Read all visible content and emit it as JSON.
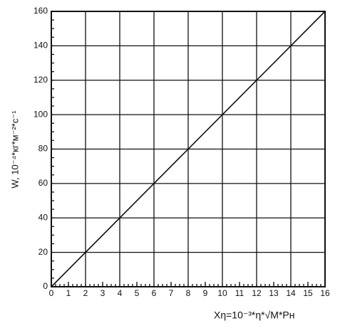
{
  "chart_data": {
    "type": "line",
    "x_label": "Xη=10⁻³*η*√M*Pн",
    "y_label": "W, 10⁻⁴*кг*м⁻²*с⁻¹",
    "series": [
      {
        "color": "#111111",
        "x": [
          0,
          16
        ],
        "values": [
          0,
          160
        ]
      }
    ],
    "xlim": [
      0,
      16
    ],
    "xticks": [
      0,
      1,
      2,
      3,
      4,
      5,
      6,
      7,
      8,
      9,
      10,
      11,
      12,
      13,
      14,
      15,
      16
    ],
    "ylim": [
      0,
      160
    ],
    "yticks": [
      0,
      20,
      40,
      60,
      80,
      100,
      120,
      140,
      160
    ],
    "grid": true,
    "x_grid_every": 2
  }
}
